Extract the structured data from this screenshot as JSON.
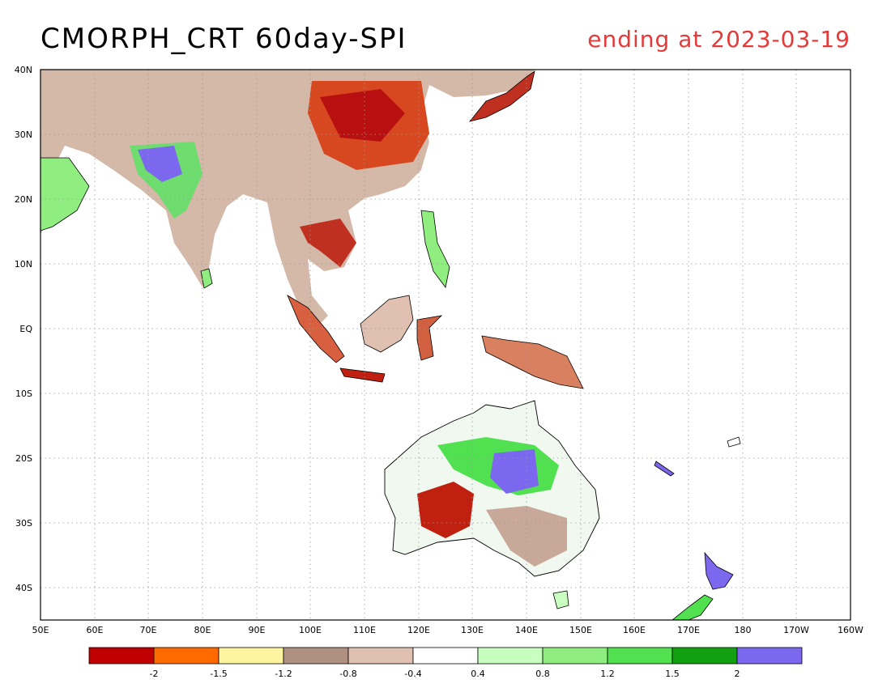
{
  "header": {
    "title": "CMORPH_CRT 60day-SPI",
    "subtitle": "ending at 2023-03-19",
    "subtitle_color": "#e33a3a"
  },
  "map": {
    "lat_labels": [
      "40N",
      "30N",
      "20N",
      "10N",
      "EQ",
      "10S",
      "20S",
      "30S",
      "40S"
    ],
    "lon_labels": [
      "50E",
      "60E",
      "70E",
      "80E",
      "90E",
      "100E",
      "110E",
      "120E",
      "130E",
      "140E",
      "150E",
      "160E",
      "170E",
      "180",
      "170W",
      "160W"
    ],
    "gridlines": "dotted"
  },
  "legend": {
    "colors": [
      "#c00000",
      "#ff6a00",
      "#fff4a0",
      "#b09080",
      "#e0c0b0",
      "#ffffff",
      "#c8ffc0",
      "#90ee80",
      "#50e050",
      "#10a010",
      "#7b68ee"
    ],
    "labels": [
      "-2",
      "-1.5",
      "-1.2",
      "-0.8",
      "-0.4",
      "0.4",
      "0.8",
      "1.2",
      "1.5",
      "2"
    ]
  }
}
